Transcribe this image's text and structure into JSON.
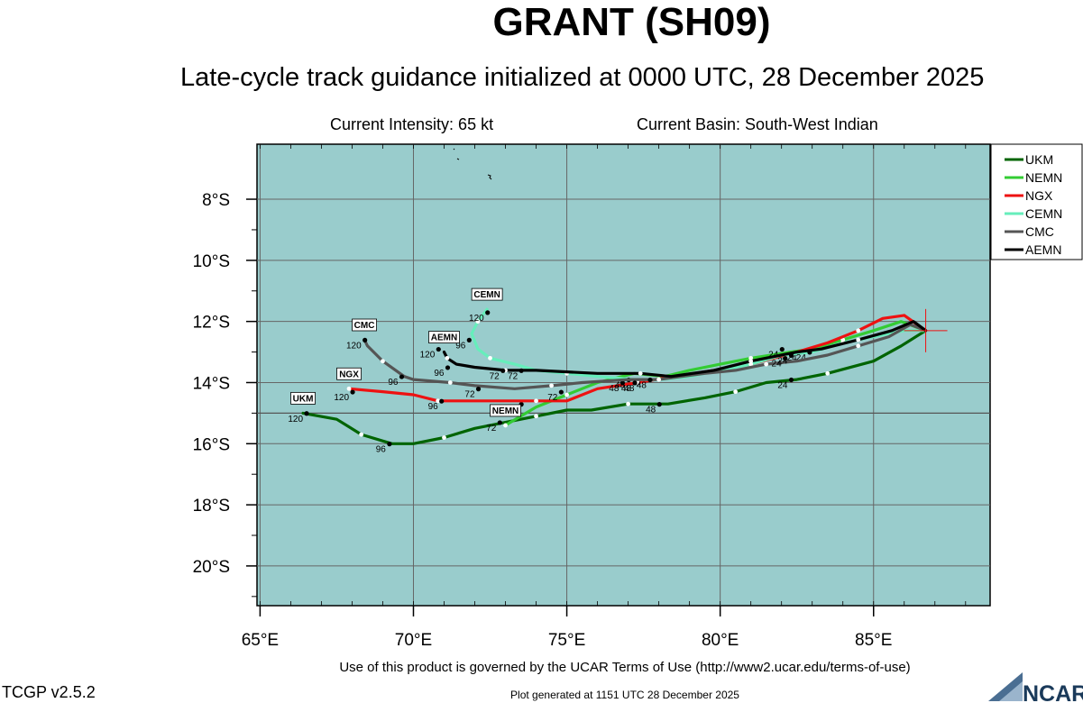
{
  "header": {
    "title": "GRANT (SH09)",
    "subtitle": "Late-cycle track guidance initialized at 0000 UTC, 28 December 2025",
    "intensity": "Current Intensity: 65 kt",
    "basin": "Current Basin: South-West Indian"
  },
  "footer": {
    "terms": "Use of this product is governed by the UCAR Terms of Use (http://www2.ucar.edu/terms-of-use)",
    "generated": "Plot generated at 1151 UTC   28 December 2025",
    "version": "TCGP v2.5.2",
    "logo_text": "NCAR"
  },
  "chart_data": {
    "type": "line",
    "title": "GRANT (SH09)",
    "x_ticks": [
      "65°E",
      "70°E",
      "75°E",
      "80°E",
      "85°E"
    ],
    "y_ticks": [
      "8°S",
      "10°S",
      "12°S",
      "14°S",
      "16°S",
      "18°S",
      "20°S"
    ],
    "x_range": [
      64.9,
      88.8
    ],
    "y_range": [
      -21.3,
      -6.2
    ],
    "grid": true,
    "background_color": "#99cccc",
    "current_position": {
      "lon": 86.7,
      "lat": -12.3
    },
    "legend_position": "right-top",
    "series": [
      {
        "name": "UKM",
        "color": "#006400",
        "points": [
          [
            86.7,
            -12.3
          ],
          [
            85.9,
            -12.8
          ],
          [
            85.0,
            -13.3
          ],
          [
            83.5,
            -13.7
          ],
          [
            82.5,
            -13.9
          ],
          [
            81.5,
            -14.0
          ],
          [
            80.5,
            -14.3
          ],
          [
            79.5,
            -14.5
          ],
          [
            78.3,
            -14.7
          ],
          [
            77.0,
            -14.7
          ],
          [
            75.8,
            -14.9
          ],
          [
            75.0,
            -14.9
          ],
          [
            74.0,
            -15.1
          ],
          [
            73.0,
            -15.3
          ],
          [
            72.0,
            -15.5
          ],
          [
            71.0,
            -15.8
          ],
          [
            70.0,
            -16.0
          ],
          [
            69.3,
            -16.0
          ],
          [
            68.3,
            -15.7
          ],
          [
            67.5,
            -15.2
          ],
          [
            66.4,
            -15.0
          ]
        ],
        "labels": [
          {
            "text": "24",
            "lon": 82.2,
            "lat": -14.0
          },
          {
            "text": "48",
            "lon": 77.9,
            "lat": -14.8
          },
          {
            "text": "72",
            "lon": 72.7,
            "lat": -15.4
          },
          {
            "text": "96",
            "lon": 69.1,
            "lat": -16.1
          },
          {
            "text": "120",
            "lon": 66.4,
            "lat": -15.1
          }
        ],
        "end_label": "UKM"
      },
      {
        "name": "NEMN",
        "color": "#33cc33",
        "points": [
          [
            86.7,
            -12.3
          ],
          [
            85.9,
            -12.0
          ],
          [
            85.0,
            -12.3
          ],
          [
            84.0,
            -12.6
          ],
          [
            83.0,
            -12.9
          ],
          [
            82.3,
            -13.0
          ],
          [
            81.0,
            -13.2
          ],
          [
            80.0,
            -13.4
          ],
          [
            79.0,
            -13.6
          ],
          [
            78.2,
            -13.8
          ],
          [
            77.2,
            -13.7
          ],
          [
            76.0,
            -14.0
          ],
          [
            75.0,
            -14.4
          ],
          [
            74.0,
            -14.8
          ],
          [
            73.5,
            -15.1
          ],
          [
            73.0,
            -15.4
          ]
        ],
        "labels": [
          {
            "text": "24",
            "lon": 82.5,
            "lat": -13.1
          },
          {
            "text": "48",
            "lon": 77.2,
            "lat": -14.1
          },
          {
            "text": "72",
            "lon": 73.4,
            "lat": -14.8
          }
        ],
        "end_label": "NEMN"
      },
      {
        "name": "NGX",
        "color": "#ee1111",
        "points": [
          [
            86.7,
            -12.3
          ],
          [
            86.0,
            -11.8
          ],
          [
            85.3,
            -11.9
          ],
          [
            84.5,
            -12.3
          ],
          [
            83.5,
            -12.7
          ],
          [
            82.5,
            -13.0
          ],
          [
            81.0,
            -13.4
          ],
          [
            79.8,
            -13.6
          ],
          [
            78.5,
            -13.8
          ],
          [
            77.3,
            -14.0
          ],
          [
            76.0,
            -14.2
          ],
          [
            75.0,
            -14.6
          ],
          [
            74.0,
            -14.6
          ],
          [
            73.0,
            -14.6
          ],
          [
            72.0,
            -14.6
          ],
          [
            70.8,
            -14.6
          ],
          [
            70.0,
            -14.4
          ],
          [
            69.0,
            -14.3
          ],
          [
            67.9,
            -14.2
          ]
        ],
        "labels": [
          {
            "text": "24",
            "lon": 81.9,
            "lat": -13.0
          },
          {
            "text": "48",
            "lon": 76.7,
            "lat": -14.1
          },
          {
            "text": "72",
            "lon": 74.7,
            "lat": -14.4
          },
          {
            "text": "96",
            "lon": 70.8,
            "lat": -14.7
          },
          {
            "text": "120",
            "lon": 67.9,
            "lat": -14.4
          }
        ],
        "end_label": "NGX"
      },
      {
        "name": "CEMN",
        "color": "#66eebb",
        "points": [
          [
            86.7,
            -12.3
          ],
          [
            86.0,
            -12.3
          ],
          [
            85.0,
            -12.5
          ],
          [
            84.0,
            -12.7
          ],
          [
            83.0,
            -13.0
          ],
          [
            82.0,
            -13.1
          ],
          [
            81.0,
            -13.4
          ],
          [
            80.0,
            -13.6
          ],
          [
            79.0,
            -13.8
          ],
          [
            78.0,
            -13.9
          ],
          [
            77.2,
            -13.9
          ],
          [
            76.0,
            -13.8
          ],
          [
            75.0,
            -13.7
          ],
          [
            74.0,
            -13.6
          ],
          [
            73.3,
            -13.4
          ],
          [
            72.5,
            -13.2
          ],
          [
            72.1,
            -12.9
          ],
          [
            71.9,
            -12.4
          ],
          [
            72.1,
            -12.0
          ],
          [
            72.4,
            -11.6
          ]
        ],
        "labels": [
          {
            "text": "24",
            "lon": 82.8,
            "lat": -13.1
          },
          {
            "text": "48",
            "lon": 76.9,
            "lat": -14.0
          },
          {
            "text": "72",
            "lon": 73.4,
            "lat": -13.7
          },
          {
            "text": "96",
            "lon": 71.7,
            "lat": -12.7
          },
          {
            "text": "120",
            "lon": 72.3,
            "lat": -11.8
          }
        ],
        "end_label": "CEMN"
      },
      {
        "name": "CMC",
        "color": "#555555",
        "points": [
          [
            86.7,
            -12.3
          ],
          [
            86.2,
            -12.1
          ],
          [
            85.5,
            -12.5
          ],
          [
            84.5,
            -12.8
          ],
          [
            83.5,
            -13.1
          ],
          [
            82.5,
            -13.3
          ],
          [
            81.5,
            -13.4
          ],
          [
            80.5,
            -13.6
          ],
          [
            79.5,
            -13.7
          ],
          [
            78.0,
            -13.9
          ],
          [
            77.0,
            -13.9
          ],
          [
            75.5,
            -14.0
          ],
          [
            74.5,
            -14.1
          ],
          [
            73.3,
            -14.2
          ],
          [
            72.0,
            -14.1
          ],
          [
            71.2,
            -14.0
          ],
          [
            70.0,
            -13.9
          ],
          [
            69.7,
            -13.8
          ],
          [
            69.0,
            -13.3
          ],
          [
            68.5,
            -12.8
          ],
          [
            68.4,
            -12.6
          ]
        ],
        "labels": [
          {
            "text": "24",
            "lon": 82.0,
            "lat": -13.3
          },
          {
            "text": "48",
            "lon": 77.1,
            "lat": -14.1
          },
          {
            "text": "72",
            "lon": 72.0,
            "lat": -14.3
          },
          {
            "text": "96",
            "lon": 69.5,
            "lat": -13.9
          },
          {
            "text": "120",
            "lon": 68.3,
            "lat": -12.7
          }
        ],
        "end_label": "CMC"
      },
      {
        "name": "AEMN",
        "color": "#000000",
        "points": [
          [
            86.7,
            -12.3
          ],
          [
            86.3,
            -12.0
          ],
          [
            85.6,
            -12.3
          ],
          [
            84.5,
            -12.6
          ],
          [
            83.3,
            -12.9
          ],
          [
            82.5,
            -13.0
          ],
          [
            81.0,
            -13.3
          ],
          [
            79.8,
            -13.6
          ],
          [
            78.4,
            -13.8
          ],
          [
            77.4,
            -13.7
          ],
          [
            76.0,
            -13.7
          ],
          [
            74.0,
            -13.6
          ],
          [
            73.0,
            -13.6
          ],
          [
            72.0,
            -13.5
          ],
          [
            71.4,
            -13.4
          ],
          [
            71.1,
            -13.2
          ],
          [
            71.0,
            -13.0
          ]
        ],
        "labels": [
          {
            "text": "24",
            "lon": 82.2,
            "lat": -13.2
          },
          {
            "text": "48",
            "lon": 77.6,
            "lat": -14.0
          },
          {
            "text": "72",
            "lon": 72.8,
            "lat": -13.7
          },
          {
            "text": "96",
            "lon": 71.0,
            "lat": -13.6
          },
          {
            "text": "120",
            "lon": 70.7,
            "lat": -13.0
          }
        ],
        "end_label": "AEMN"
      }
    ]
  }
}
